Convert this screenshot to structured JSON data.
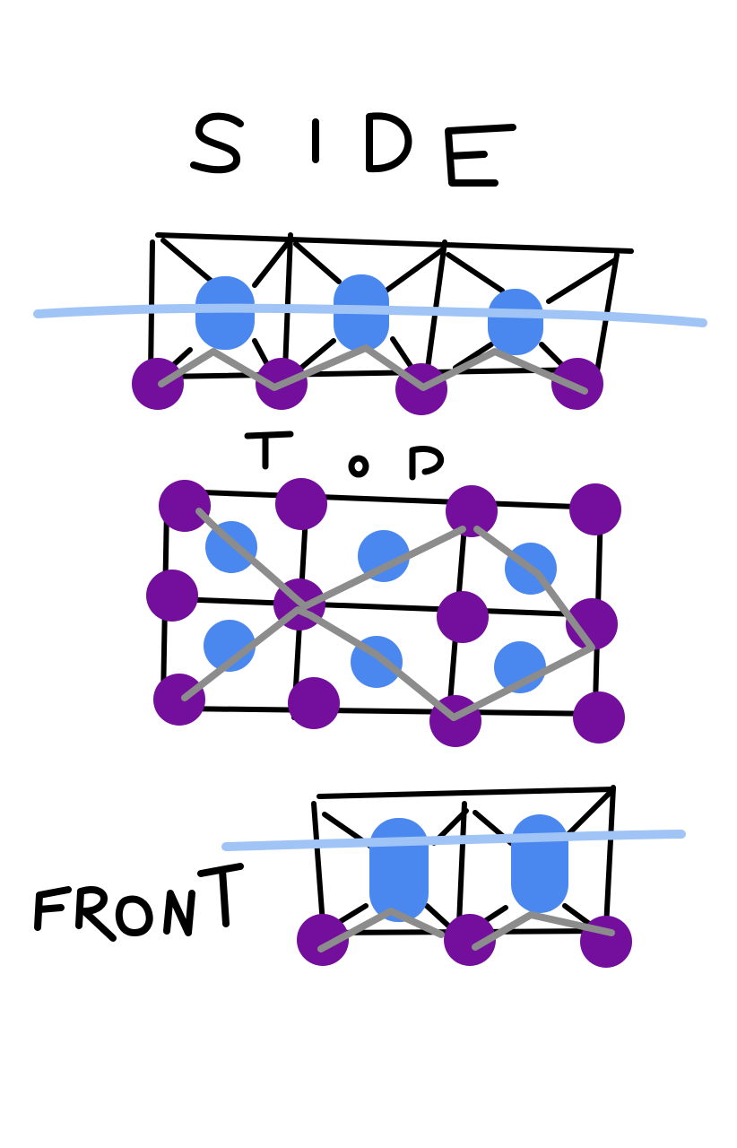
{
  "labels": {
    "side": "SIDE",
    "top": "Top",
    "front": "FRONT"
  },
  "colors": {
    "background": "#ffffff",
    "ink": "#000000",
    "purple_atom": "#740e9c",
    "blue_atom": "#4a88f0",
    "plane_line": "#a0c4f5",
    "bond": "#8c8c8c"
  },
  "icons": {
    "purple": "purple-atom-icon",
    "blue": "blue-atom-icon"
  }
}
